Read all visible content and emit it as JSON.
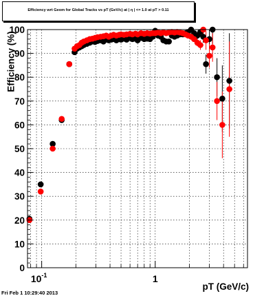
{
  "title": "Efficiency wrt Geom for Global Tracks vs pT (GeV/c) at |  η  | <= 1.0 at pT > 0.11",
  "timestamp": "Fri Feb  1 10:29:40 2013",
  "chart_data": {
    "type": "scatter",
    "title": "Efficiency wrt Geom for Global Tracks vs pT (GeV/c) at |  η  | <= 1.0 at pT > 0.11",
    "xlabel": "pT (GeV/c)",
    "ylabel": "Efficiency (%)",
    "xscale": "log",
    "xlim": [
      0.075,
      6.5
    ],
    "ylim": [
      0,
      100
    ],
    "grid": true,
    "x_tick_labels": [
      "10^-1",
      "1"
    ],
    "y_tick_labels": [
      "0",
      "10",
      "20",
      "30",
      "40",
      "50",
      "60",
      "70",
      "80",
      "90",
      "100"
    ],
    "series": [
      {
        "color": "#000000",
        "points": [
          [
            0.078,
            20.5,
            1.2
          ],
          [
            0.098,
            35,
            1.2
          ],
          [
            0.125,
            52,
            1
          ],
          [
            0.15,
            62,
            1
          ],
          [
            0.175,
            85.5,
            0.8
          ],
          [
            0.195,
            90.5,
            0.5
          ],
          [
            0.205,
            92,
            0.5
          ],
          [
            0.215,
            92.5,
            0.5
          ],
          [
            0.225,
            93,
            0.5
          ],
          [
            0.235,
            93.5,
            0.5
          ],
          [
            0.25,
            94,
            0.5
          ],
          [
            0.265,
            94.5,
            0.5
          ],
          [
            0.28,
            95,
            0.5
          ],
          [
            0.295,
            94.8,
            0.5
          ],
          [
            0.31,
            95.2,
            0.5
          ],
          [
            0.33,
            95.5,
            0.5
          ],
          [
            0.35,
            95,
            0.5
          ],
          [
            0.37,
            95.8,
            0.5
          ],
          [
            0.39,
            95.5,
            0.5
          ],
          [
            0.41,
            95.8,
            0.5
          ],
          [
            0.43,
            96,
            0.5
          ],
          [
            0.455,
            95.5,
            0.5
          ],
          [
            0.48,
            96,
            0.5
          ],
          [
            0.5,
            95.8,
            0.5
          ],
          [
            0.53,
            96.2,
            0.5
          ],
          [
            0.56,
            95.8,
            0.5
          ],
          [
            0.6,
            96.5,
            0.5
          ],
          [
            0.63,
            96,
            0.5
          ],
          [
            0.67,
            96.2,
            0.5
          ],
          [
            0.7,
            95.5,
            0.5
          ],
          [
            0.75,
            96.5,
            0.5
          ],
          [
            0.8,
            96,
            0.5
          ],
          [
            0.85,
            96.2,
            0.5
          ],
          [
            0.9,
            96,
            0.5
          ],
          [
            0.95,
            97,
            0.5
          ],
          [
            1.0,
            99.5,
            0.5
          ],
          [
            1.06,
            97.5,
            0.5
          ],
          [
            1.12,
            97,
            0.5
          ],
          [
            1.18,
            95.5,
            0.5
          ],
          [
            1.25,
            95,
            0.6
          ],
          [
            1.32,
            95,
            0.6
          ],
          [
            1.4,
            97.5,
            0.6
          ],
          [
            1.48,
            97,
            0.6
          ],
          [
            1.56,
            97.5,
            0.6
          ],
          [
            1.65,
            98,
            0.6
          ],
          [
            1.75,
            98,
            0.6
          ],
          [
            1.85,
            98.5,
            0.6
          ],
          [
            1.95,
            99,
            0.6
          ],
          [
            2.07,
            100,
            0.6
          ],
          [
            2.2,
            98.5,
            0.8
          ],
          [
            2.35,
            97.5,
            1.5
          ],
          [
            2.5,
            99,
            2
          ],
          [
            2.65,
            97,
            2.5
          ],
          [
            2.8,
            85.5,
            4
          ],
          [
            3.0,
            96,
            5
          ],
          [
            3.2,
            100,
            6
          ],
          [
            3.5,
            80,
            8
          ],
          [
            3.9,
            71,
            14
          ],
          [
            4.5,
            78.5,
            20
          ]
        ]
      },
      {
        "color": "#ff0000",
        "points": [
          [
            0.078,
            20,
            1.2
          ],
          [
            0.098,
            32,
            1.2
          ],
          [
            0.125,
            50,
            1
          ],
          [
            0.15,
            62.5,
            1
          ],
          [
            0.175,
            85.5,
            0.8
          ],
          [
            0.195,
            92,
            0.5
          ],
          [
            0.205,
            93,
            0.5
          ],
          [
            0.215,
            93.5,
            0.5
          ],
          [
            0.225,
            94.5,
            0.5
          ],
          [
            0.235,
            95,
            0.5
          ],
          [
            0.25,
            95.5,
            0.5
          ],
          [
            0.265,
            96,
            0.5
          ],
          [
            0.28,
            96.2,
            0.5
          ],
          [
            0.295,
            96.5,
            0.5
          ],
          [
            0.31,
            96.8,
            0.5
          ],
          [
            0.33,
            97,
            0.5
          ],
          [
            0.35,
            97.2,
            0.5
          ],
          [
            0.37,
            97.5,
            0.5
          ],
          [
            0.39,
            97,
            0.5
          ],
          [
            0.41,
            97.5,
            0.5
          ],
          [
            0.43,
            97.8,
            0.5
          ],
          [
            0.455,
            97.5,
            0.5
          ],
          [
            0.48,
            97.8,
            0.5
          ],
          [
            0.5,
            98,
            0.5
          ],
          [
            0.53,
            97.8,
            0.5
          ],
          [
            0.56,
            98,
            0.5
          ],
          [
            0.6,
            98.2,
            0.5
          ],
          [
            0.63,
            98,
            0.5
          ],
          [
            0.67,
            98.3,
            0.5
          ],
          [
            0.7,
            98,
            0.5
          ],
          [
            0.75,
            98.5,
            0.5
          ],
          [
            0.8,
            98.2,
            0.5
          ],
          [
            0.85,
            98.5,
            0.5
          ],
          [
            0.9,
            98.3,
            0.5
          ],
          [
            0.95,
            98.5,
            0.5
          ],
          [
            1.0,
            98.5,
            0.5
          ],
          [
            1.06,
            98.8,
            0.5
          ],
          [
            1.12,
            98.5,
            0.5
          ],
          [
            1.18,
            98.8,
            0.5
          ],
          [
            1.25,
            98.5,
            0.6
          ],
          [
            1.32,
            98.8,
            0.6
          ],
          [
            1.4,
            99,
            0.6
          ],
          [
            1.48,
            98.8,
            0.6
          ],
          [
            1.56,
            99,
            0.6
          ],
          [
            1.65,
            98.8,
            0.6
          ],
          [
            1.75,
            98.5,
            0.6
          ],
          [
            1.85,
            98,
            0.6
          ],
          [
            1.95,
            97.5,
            0.6
          ],
          [
            2.07,
            97,
            0.6
          ],
          [
            2.2,
            96,
            0.8
          ],
          [
            2.35,
            94.5,
            1.5
          ],
          [
            2.5,
            93.5,
            2
          ],
          [
            2.65,
            100,
            2.5
          ],
          [
            2.8,
            95.5,
            4
          ],
          [
            3.0,
            89,
            5
          ],
          [
            3.2,
            92.5,
            6
          ],
          [
            3.5,
            70,
            8
          ],
          [
            3.9,
            60,
            14
          ],
          [
            4.5,
            75,
            20
          ]
        ]
      }
    ]
  }
}
